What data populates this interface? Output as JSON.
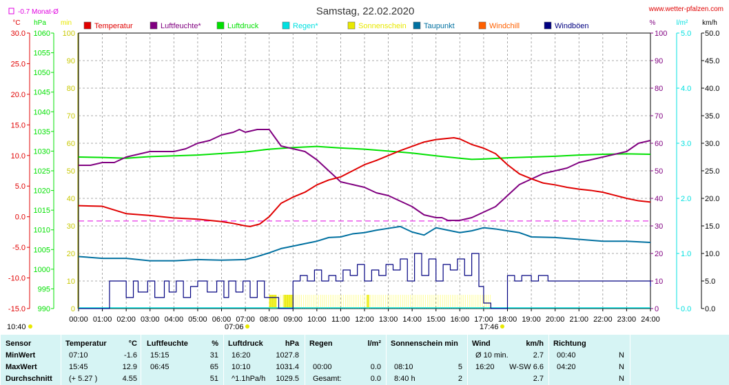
{
  "header": {
    "title": "Samstag, 22.02.2020",
    "site": "www.wetter-pfalzen.com",
    "month_avg_label": "-0.7 Monat-Ø"
  },
  "axes": {
    "left_units": [
      "°C",
      "hPa",
      "min"
    ],
    "right_units": [
      "%",
      "l/m²",
      "km/h"
    ],
    "temp_ticks": [
      "30.0",
      "25.0",
      "20.0",
      "15.0",
      "10.0",
      "5.0",
      "0.0",
      "-5.0",
      "-10.0",
      "-15.0"
    ],
    "hpa_ticks": [
      "1060",
      "1055",
      "1050",
      "1045",
      "1040",
      "1035",
      "1030",
      "1025",
      "1020",
      "1015",
      "1010",
      "1005",
      "1000",
      "995",
      "990"
    ],
    "min_ticks": [
      "100",
      "90",
      "80",
      "70",
      "60",
      "50",
      "40",
      "30",
      "20",
      "10",
      "0"
    ],
    "pct_ticks": [
      "100",
      "90",
      "80",
      "70",
      "60",
      "50",
      "40",
      "30",
      "20",
      "10",
      "0"
    ],
    "rain_ticks": [
      "5.0",
      "4.0",
      "3.0",
      "2.0",
      "1.0",
      "0.0"
    ],
    "wind_ticks": [
      "50.0",
      "45.0",
      "40.0",
      "35.0",
      "30.0",
      "25.0",
      "20.0",
      "15.0",
      "10.0",
      "5.0",
      "0.0"
    ],
    "x_ticks": [
      "00:00",
      "01:00",
      "02:00",
      "03:00",
      "04:00",
      "05:00",
      "06:00",
      "07:00",
      "08:00",
      "09:00",
      "10:00",
      "11:00",
      "12:00",
      "13:00",
      "14:00",
      "15:00",
      "16:00",
      "17:00",
      "18:00",
      "19:00",
      "20:00",
      "21:00",
      "22:00",
      "23:00",
      "24:00"
    ]
  },
  "markers": {
    "bottom_left": "10:40",
    "sunrise": "07:06",
    "sunset": "17:46"
  },
  "legend": [
    {
      "label": "Temperatur",
      "color": "#e00000"
    },
    {
      "label": "Luftfeuchte*",
      "color": "#800080"
    },
    {
      "label": "Luftdruck",
      "color": "#00e000"
    },
    {
      "label": "Regen*",
      "color": "#00e0e0"
    },
    {
      "label": "Sonnenschein",
      "color": "#e8e800"
    },
    {
      "label": "Taupunkt",
      "color": "#0070a0"
    },
    {
      "label": "Windchill",
      "color": "#ff6000"
    },
    {
      "label": "Windböen",
      "color": "#000080"
    }
  ],
  "colors": {
    "temp": "#e00000",
    "hum": "#800080",
    "press": "#00e000",
    "rain": "#00e0e0",
    "sun": "#e8e800",
    "dew": "#0070a0",
    "gust": "#000080",
    "avg_line": "#e000e0",
    "grid": "#909090",
    "summary_bg": "#d6f4f4"
  },
  "chart_data": {
    "type": "line",
    "title": "Samstag, 22.02.2020",
    "x_unit": "hours",
    "xlim": [
      0,
      24
    ],
    "month_avg_temp": -0.7,
    "series": [
      {
        "name": "Temperatur",
        "unit": "°C",
        "ylim": [
          -15,
          30
        ],
        "x": [
          0,
          1,
          2,
          3,
          4,
          5,
          6,
          6.5,
          7,
          7.2,
          7.6,
          8,
          8.5,
          9,
          9.5,
          10,
          10.5,
          11,
          11.5,
          12,
          12.5,
          13,
          13.5,
          14,
          14.5,
          15,
          15.5,
          15.75,
          16,
          16.5,
          17,
          17.5,
          18,
          18.5,
          19,
          19.5,
          20,
          20.5,
          21,
          21.5,
          22,
          22.5,
          23,
          23.5,
          24
        ],
        "y": [
          1.8,
          1.7,
          0.5,
          0.2,
          -0.2,
          -0.4,
          -0.8,
          -1.1,
          -1.5,
          -1.6,
          -1.2,
          0.0,
          2.2,
          3.2,
          4.0,
          5.2,
          6.0,
          6.5,
          7.5,
          8.5,
          9.2,
          10.0,
          10.8,
          11.5,
          12.2,
          12.6,
          12.8,
          12.9,
          12.7,
          11.8,
          11.2,
          10.3,
          8.5,
          7.0,
          6.2,
          5.5,
          5.2,
          4.8,
          4.5,
          4.3,
          4.0,
          3.5,
          3.0,
          2.6,
          2.4
        ]
      },
      {
        "name": "Luftfeuchte*",
        "unit": "%",
        "ylim": [
          0,
          100
        ],
        "x": [
          0,
          0.5,
          1,
          1.5,
          2,
          2.5,
          3,
          3.5,
          4,
          4.5,
          5,
          5.5,
          6,
          6.5,
          6.75,
          7,
          7.5,
          8,
          8.5,
          9,
          9.5,
          10,
          10.5,
          11,
          11.5,
          12,
          12.5,
          13,
          13.5,
          14,
          14.5,
          15,
          15.25,
          15.5,
          16,
          16.5,
          17,
          17.5,
          18,
          18.5,
          19,
          19.5,
          20,
          20.5,
          21,
          21.5,
          22,
          22.5,
          23,
          23.5,
          24
        ],
        "y": [
          52,
          52,
          53,
          53,
          55,
          56,
          57,
          57,
          57,
          58,
          60,
          61,
          63,
          64,
          65,
          64,
          65,
          65,
          59,
          58,
          57,
          54,
          50,
          46,
          45,
          44,
          42,
          41,
          39,
          37,
          34,
          33,
          33,
          32,
          32,
          33,
          35,
          37,
          41,
          45,
          47,
          49,
          50,
          51,
          53,
          54,
          55,
          56,
          57,
          60,
          61
        ]
      },
      {
        "name": "Luftdruck",
        "unit": "hPa",
        "ylim": [
          990,
          1060
        ],
        "x": [
          0,
          1,
          2,
          3,
          4,
          5,
          6,
          7,
          8,
          9,
          10,
          11,
          12,
          13,
          14,
          15,
          16,
          16.5,
          17,
          18,
          19,
          20,
          21,
          22,
          23,
          24
        ],
        "y": [
          1028.5,
          1028.4,
          1028.2,
          1028.6,
          1028.8,
          1029.0,
          1029.4,
          1029.8,
          1030.5,
          1030.9,
          1031.2,
          1030.8,
          1030.5,
          1030.0,
          1029.5,
          1028.8,
          1028.2,
          1027.9,
          1028.0,
          1028.3,
          1028.5,
          1028.7,
          1029.0,
          1029.2,
          1029.3,
          1029.2
        ]
      },
      {
        "name": "Taupunkt",
        "unit": "°C",
        "ylim": [
          -15,
          30
        ],
        "x": [
          0,
          1,
          2,
          3,
          4,
          5,
          6,
          7,
          7.5,
          8,
          8.5,
          9,
          9.5,
          10,
          10.5,
          11,
          11.5,
          12,
          12.5,
          13,
          13.5,
          14,
          14.5,
          15,
          15.5,
          16,
          16.5,
          17,
          17.5,
          18,
          18.5,
          19,
          20,
          21,
          22,
          23,
          24
        ],
        "y": [
          -6.5,
          -6.8,
          -6.8,
          -7.2,
          -7.2,
          -7.0,
          -7.1,
          -7.0,
          -6.5,
          -5.9,
          -5.2,
          -4.8,
          -4.4,
          -4.0,
          -3.4,
          -3.3,
          -2.8,
          -2.6,
          -2.2,
          -1.9,
          -1.6,
          -2.5,
          -3.0,
          -1.8,
          -2.2,
          -2.6,
          -2.3,
          -1.8,
          -2.0,
          -2.3,
          -2.6,
          -3.3,
          -3.4,
          -3.7,
          -4.0,
          -4.0,
          -4.2
        ]
      },
      {
        "name": "Windböen",
        "unit": "km/h",
        "ylim": [
          0,
          50
        ],
        "x": [
          0,
          1.2,
          1.3,
          1.5,
          2,
          2.3,
          2.5,
          2.9,
          3.2,
          3.6,
          3.8,
          4.1,
          4.4,
          4.7,
          5,
          5.4,
          5.8,
          6.1,
          6.3,
          6.6,
          6.9,
          7.2,
          7.5,
          7.8,
          8,
          8.4,
          8.6,
          9,
          9.3,
          9.6,
          9.9,
          10.2,
          10.5,
          10.8,
          11.1,
          11.4,
          11.7,
          12,
          12.3,
          12.6,
          12.9,
          13.2,
          13.5,
          13.8,
          14.1,
          14.4,
          14.7,
          15,
          15.3,
          15.6,
          15.9,
          16.2,
          16.5,
          16.8,
          17.0,
          17.3,
          17.9,
          18,
          18.3,
          18.6,
          19,
          19.3,
          19.7,
          20,
          20.5,
          21,
          21.5,
          22,
          22.5,
          23,
          23.5,
          24
        ],
        "y": [
          0,
          0,
          5,
          5,
          2,
          5,
          3,
          5,
          2,
          5,
          3,
          5,
          2,
          4,
          5,
          3,
          5,
          2,
          5,
          3,
          5,
          2,
          5,
          2,
          2,
          0,
          0,
          5,
          6,
          5,
          7,
          5,
          6,
          5,
          7,
          6,
          8,
          5,
          7,
          6,
          8,
          7,
          9,
          5,
          10,
          6,
          9,
          5,
          8,
          7,
          9,
          6,
          10,
          4,
          1,
          0,
          0,
          6,
          5,
          6,
          5,
          6,
          5,
          5,
          5,
          5,
          5,
          5,
          5,
          5,
          5,
          4
        ]
      },
      {
        "name": "Sonnenschein",
        "unit": "min",
        "ylim": [
          0,
          100
        ],
        "x": [
          8.0,
          8.3,
          8.6,
          9.0,
          12.1,
          12.2,
          17.3
        ],
        "y": [
          5,
          5,
          5,
          5,
          5,
          5,
          5
        ]
      }
    ]
  },
  "summary": {
    "headers": {
      "sensor": "Sensor",
      "temp": "Temperatur",
      "temp_unit": "°C",
      "hum": "Luftfeuchte",
      "hum_unit": "%",
      "press": "Luftdruck",
      "press_unit": "hPa",
      "rain": "Regen",
      "rain_unit": "l/m²",
      "sun": "Sonnenschein min",
      "wind": "Wind",
      "wind_unit": "km/h",
      "dir": "Richtung"
    },
    "rows": [
      {
        "label": "MinWert",
        "temp_time": "07:10",
        "temp_val": "-1.6",
        "hum_time": "15:15",
        "hum_val": "31",
        "press_time": "16:20",
        "press_val": "1027.8",
        "rain_time": "",
        "rain_val": "",
        "sun_time": "",
        "sun_val": "",
        "wind_time": "Ø 10 min.",
        "wind_val": "2.7",
        "dir_time": "00:40",
        "dir_val": "N"
      },
      {
        "label": "MaxWert",
        "temp_time": "15:45",
        "temp_val": "12.9",
        "hum_time": "06:45",
        "hum_val": "65",
        "press_time": "10:10",
        "press_val": "1031.4",
        "rain_time": "00:00",
        "rain_val": "0.0",
        "sun_time": "08:10",
        "sun_val": "5",
        "wind_time": "16:20",
        "wind_val": "W-SW 6.6",
        "dir_time": "04:20",
        "dir_val": "N"
      },
      {
        "label": "Durchschnitt",
        "temp_time": "(+ 5.27 )",
        "temp_val": "4.55",
        "hum_time": "",
        "hum_val": "51",
        "press_time": "^1.1hPa/h",
        "press_val": "1029.5",
        "rain_time": "Gesamt:",
        "rain_val": "0.0",
        "sun_time": "8:40 h",
        "sun_val": "2",
        "wind_time": "",
        "wind_val": "2.7",
        "dir_time": "",
        "dir_val": "N"
      }
    ]
  }
}
